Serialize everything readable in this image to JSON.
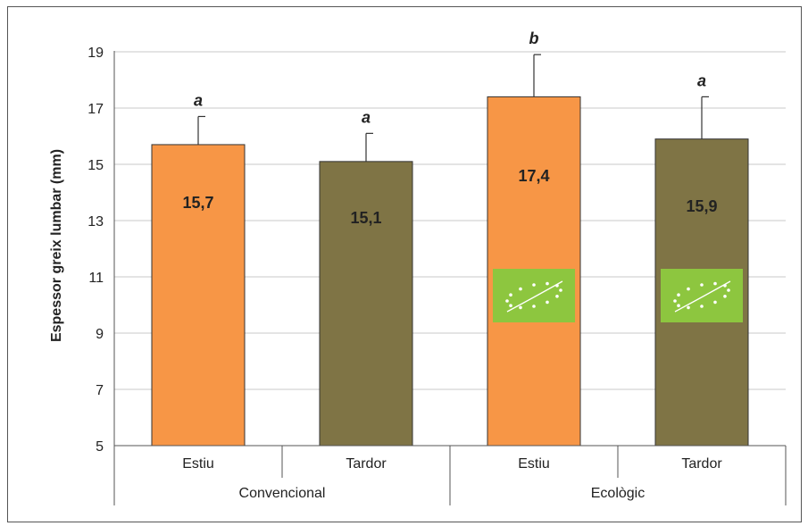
{
  "chart_data": {
    "type": "bar",
    "ylabel": "Espessor greix lumbar (mm)",
    "ylim": [
      5,
      19
    ],
    "yticks": [
      5,
      7,
      9,
      11,
      13,
      15,
      17,
      19
    ],
    "grid": true,
    "groups": [
      {
        "name": "Convencional",
        "bars": [
          {
            "category": "Estiu",
            "value": 15.7,
            "error": 1.0,
            "label": "15,7",
            "significance": "a",
            "color": "#F79646",
            "organic_logo": false
          },
          {
            "category": "Tardor",
            "value": 15.1,
            "error": 1.0,
            "label": "15,1",
            "significance": "a",
            "color": "#7F7445",
            "organic_logo": false
          }
        ]
      },
      {
        "name": "Ecològic",
        "bars": [
          {
            "category": "Estiu",
            "value": 17.4,
            "error": 1.5,
            "label": "17,4",
            "significance": "b",
            "color": "#F79646",
            "organic_logo": true
          },
          {
            "category": "Tardor",
            "value": 15.9,
            "error": 1.5,
            "label": "15,9",
            "significance": "a",
            "color": "#7F7445",
            "organic_logo": true
          }
        ]
      }
    ],
    "logo_color": "#8DC63F"
  }
}
